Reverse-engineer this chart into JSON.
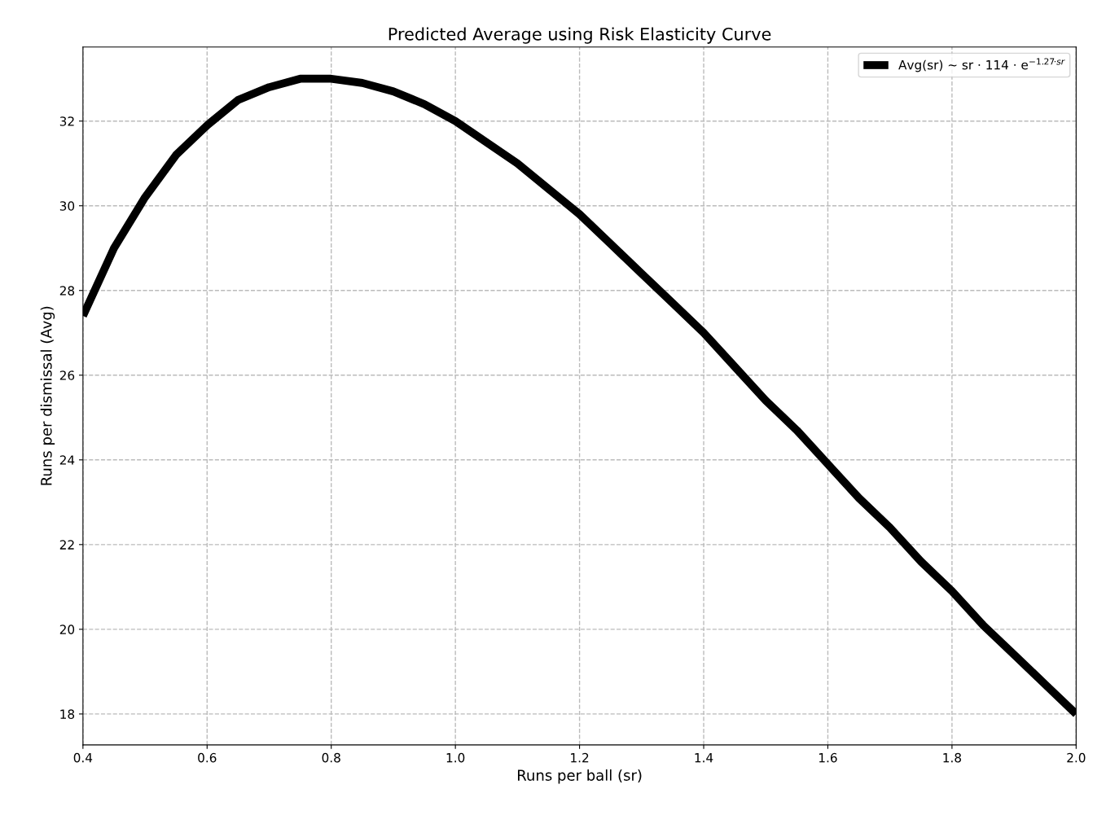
{
  "chart_data": {
    "type": "line",
    "title": "Predicted Average using Risk Elasticity Curve",
    "xlabel": "Runs per ball (sr)",
    "ylabel": "Runs per dismissal (Avg)",
    "x": [
      0.4,
      0.45,
      0.5,
      0.55,
      0.6,
      0.65,
      0.7,
      0.75,
      0.8,
      0.85,
      0.9,
      0.95,
      1.0,
      1.05,
      1.1,
      1.15,
      1.2,
      1.25,
      1.3,
      1.35,
      1.4,
      1.45,
      1.5,
      1.55,
      1.6,
      1.65,
      1.7,
      1.75,
      1.8,
      1.85,
      1.9,
      1.95,
      2.0
    ],
    "series": [
      {
        "name": "Avg(sr) ~ sr · 114 · e$^{−1.27·sr}$",
        "color": "#000000",
        "values": [
          27.4,
          29.0,
          30.2,
          31.2,
          31.9,
          32.5,
          32.8,
          33.0,
          33.0,
          32.9,
          32.7,
          32.4,
          32.0,
          31.5,
          31.0,
          30.4,
          29.8,
          29.1,
          28.4,
          27.7,
          27.0,
          26.2,
          25.4,
          24.7,
          23.9,
          23.1,
          22.4,
          21.6,
          20.9,
          20.1,
          19.4,
          18.7,
          18.0
        ]
      }
    ],
    "xlim": [
      0.4,
      2.0
    ],
    "xticks": [
      0.4,
      0.6,
      0.8,
      {
        "value": 1,
        "label": "1.0"
      },
      1.2,
      1.4,
      1.6,
      1.8,
      {
        "value": 2,
        "label": "2.0"
      }
    ],
    "ylim": [
      17.27,
      33.75
    ],
    "yticks": [
      18,
      20,
      22,
      24,
      26,
      28,
      30,
      32
    ],
    "grid": true,
    "legend": "top right",
    "marker": "none",
    "line_style": "solid"
  }
}
